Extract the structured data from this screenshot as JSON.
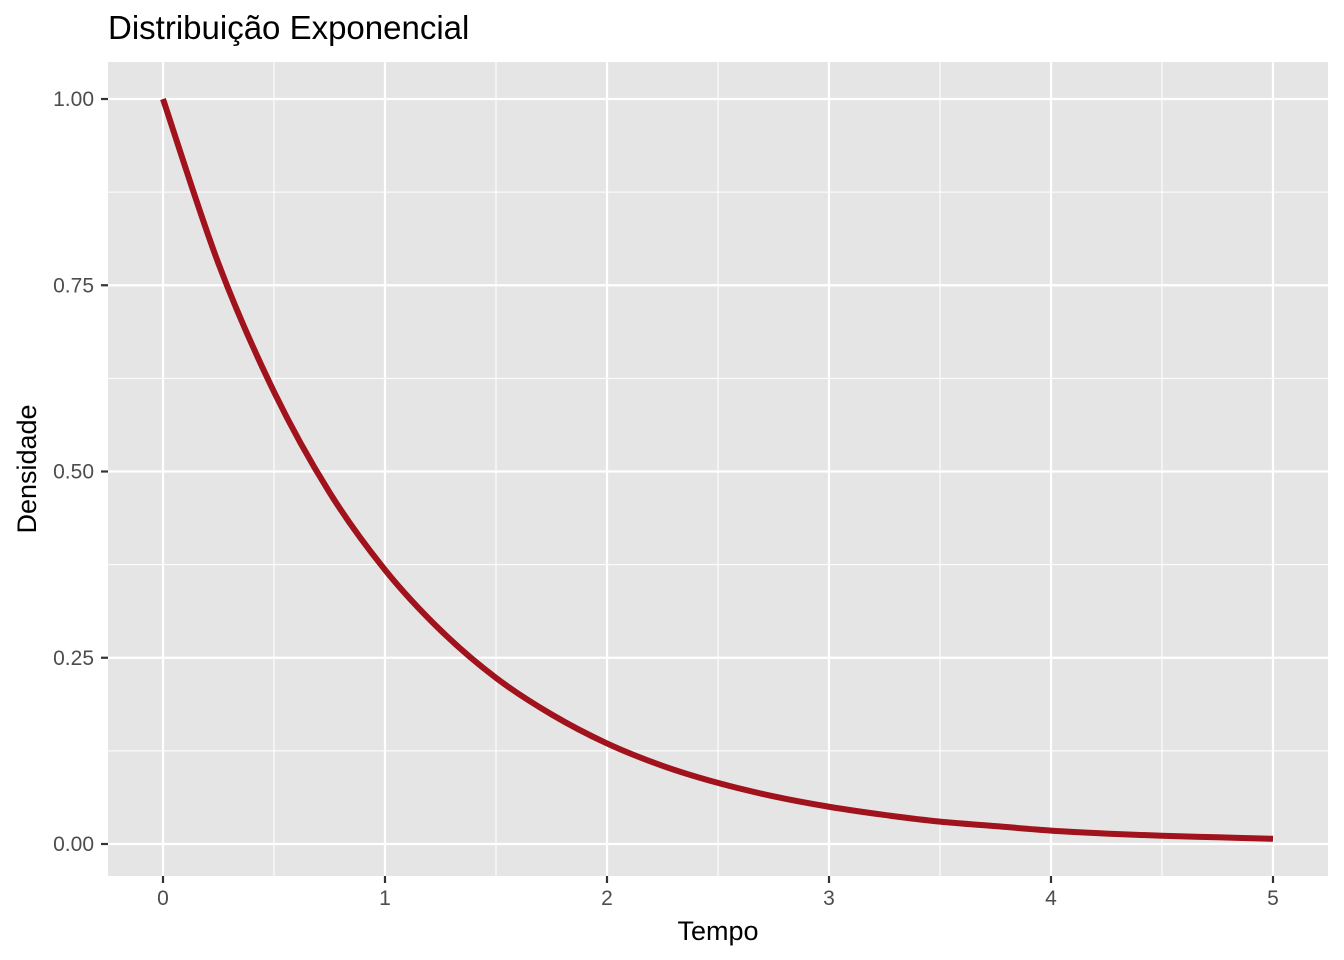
{
  "chart_data": {
    "type": "line",
    "title": "Distribuição Exponencial",
    "xlabel": "Tempo",
    "ylabel": "Densidade",
    "xlim": [
      0,
      5
    ],
    "ylim": [
      0,
      1
    ],
    "x_ticks": [
      0,
      1,
      2,
      3,
      4,
      5
    ],
    "x_tick_labels": [
      "0",
      "1",
      "2",
      "3",
      "4",
      "5"
    ],
    "y_ticks": [
      0,
      0.25,
      0.5,
      0.75,
      1
    ],
    "y_tick_labels": [
      "0.00",
      "0.25",
      "0.50",
      "0.75",
      "1.00"
    ],
    "grid": true,
    "legend": "none",
    "series": [
      {
        "color": "#a0121c",
        "x": [
          0,
          0.25,
          0.5,
          0.75,
          1,
          1.25,
          1.5,
          1.75,
          2,
          2.25,
          2.5,
          2.75,
          3,
          3.25,
          3.5,
          3.75,
          4,
          4.25,
          4.5,
          4.75,
          5
        ],
        "y": [
          1.0,
          0.779,
          0.607,
          0.472,
          0.368,
          0.287,
          0.223,
          0.174,
          0.135,
          0.105,
          0.082,
          0.064,
          0.05,
          0.039,
          0.03,
          0.024,
          0.018,
          0.014,
          0.011,
          0.009,
          0.007
        ]
      }
    ]
  },
  "colors": {
    "panel_background": "#e5e5e5",
    "grid": "#ffffff",
    "line": "#a0121c"
  }
}
